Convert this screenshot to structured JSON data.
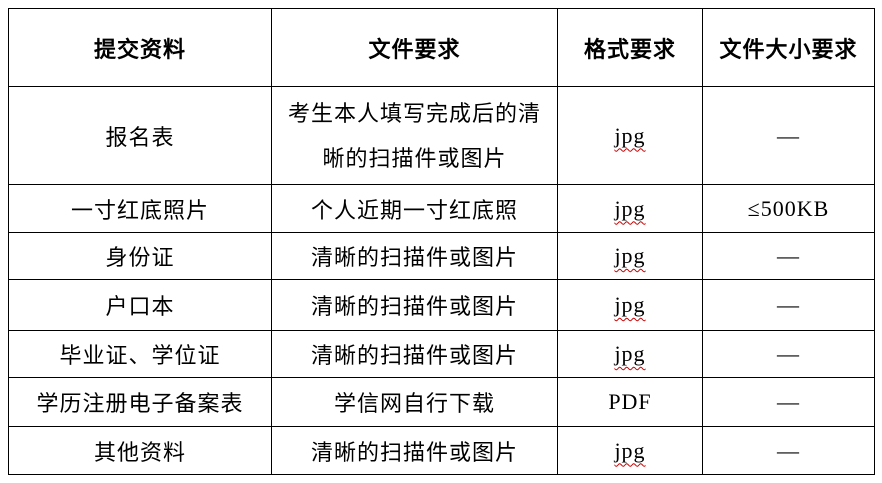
{
  "colors": {
    "text": "#000000",
    "border": "#000000",
    "background": "#ffffff",
    "spellcheck_underline": "#cc0000"
  },
  "table": {
    "headers": {
      "material": "提交资料",
      "requirement": "文件要求",
      "format": "格式要求",
      "size": "文件大小要求"
    },
    "rows": [
      {
        "material": "报名表",
        "requirement": "考生本人填写完成后的清\n晰的扫描件或图片",
        "format": "jpg",
        "size": "—"
      },
      {
        "material": "一寸红底照片",
        "requirement": "个人近期一寸红底照",
        "format": "jpg",
        "size": "≤500KB"
      },
      {
        "material": "身份证",
        "requirement": "清晰的扫描件或图片",
        "format": "jpg",
        "size": "—"
      },
      {
        "material": "户口本",
        "requirement": "清晰的扫描件或图片",
        "format": "jpg",
        "size": "—"
      },
      {
        "material": "毕业证、学位证",
        "requirement": "清晰的扫描件或图片",
        "format": "jpg",
        "size": "—"
      },
      {
        "material": "学历注册电子备案表",
        "requirement": "学信网自行下载",
        "format": "PDF",
        "size": "—"
      },
      {
        "material": "其他资料",
        "requirement": "清晰的扫描件或图片",
        "format": "jpg",
        "size": "—"
      }
    ]
  }
}
